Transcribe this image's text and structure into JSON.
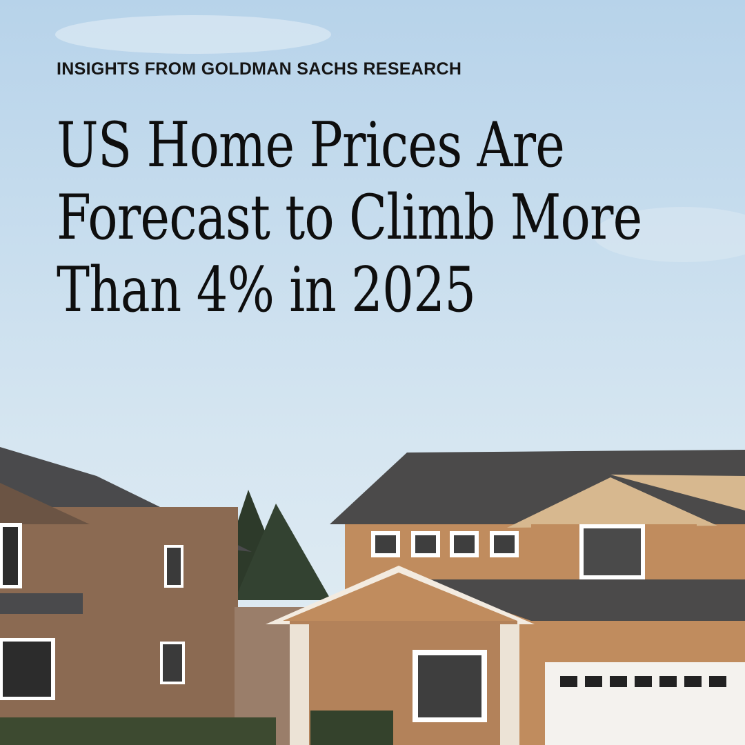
{
  "header": {
    "kicker": "INSIGHTS FROM GOLDMAN SACHS RESEARCH",
    "title_lines": [
      "US Home Prices Are",
      "Forecast to Climb More",
      "Than 4% in 2025"
    ]
  }
}
